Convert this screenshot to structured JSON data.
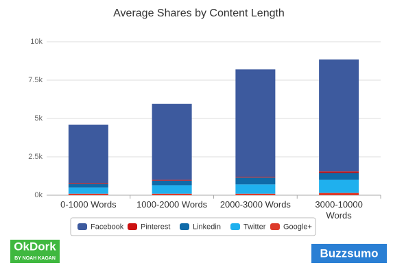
{
  "chart_data": {
    "type": "stacked-bar",
    "title": "Average Shares by Content Length",
    "categories": [
      "0-1000 Words",
      "1000-2000 Words",
      "2000-3000 Words",
      "3000-10000 Words"
    ],
    "series": [
      {
        "name": "Facebook",
        "color": "#3d5a9e",
        "values": [
          3800,
          4950,
          7000,
          7300
        ]
      },
      {
        "name": "Pinterest",
        "color": "#cc1111",
        "values": [
          50,
          50,
          50,
          100
        ]
      },
      {
        "name": "Linkedin",
        "color": "#0f6aa8",
        "values": [
          250,
          300,
          450,
          450
        ]
      },
      {
        "name": "Twitter",
        "color": "#1fb0ee",
        "values": [
          400,
          550,
          600,
          850
        ]
      },
      {
        "name": "Google+",
        "color": "#dd3b2b",
        "values": [
          100,
          100,
          100,
          150
        ]
      }
    ],
    "ylim": [
      0,
      10000
    ],
    "yticks": [
      {
        "value": 0,
        "label": "0k"
      },
      {
        "value": 2500,
        "label": "2.5k"
      },
      {
        "value": 5000,
        "label": "5k"
      },
      {
        "value": 7500,
        "label": "7.5k"
      },
      {
        "value": 10000,
        "label": "10k"
      }
    ],
    "grid": true
  },
  "logos": {
    "left": "OkDork",
    "left_sub": "BY NOAH KAGAN",
    "right": "Buzzsumo"
  }
}
